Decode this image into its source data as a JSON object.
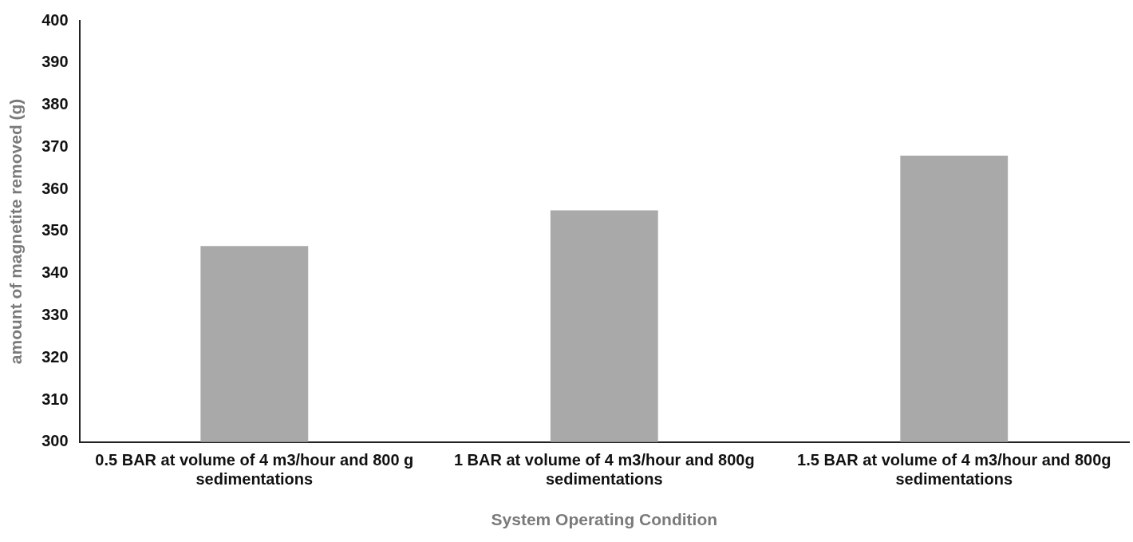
{
  "chart_data": {
    "type": "bar",
    "xlabel": "System Operating Condition",
    "ylabel": "amount of magnetite removed (g)",
    "categories": [
      "0.5 BAR at volume of 4 m3/hour and 800 g sedimentations",
      "1 BAR at volume of 4 m3/hour and 800g sedimentations",
      "1.5 BAR at volume of 4 m3/hour and 800g sedimentations"
    ],
    "values": [
      346.5,
      355,
      368
    ],
    "color": "#a9a9a9",
    "ylim": [
      300,
      400
    ],
    "yticks": [
      300,
      310,
      320,
      330,
      340,
      350,
      360,
      370,
      380,
      390,
      400
    ],
    "grid": false,
    "legend": false
  }
}
